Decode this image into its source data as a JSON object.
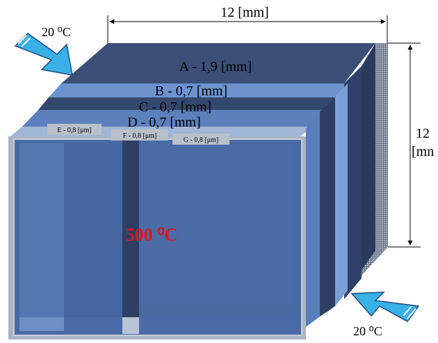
{
  "diagram": {
    "top_dimension": "12 [mm]",
    "side_dimension_value": "12",
    "side_dimension_unit": "[mn",
    "inlet_temperature": "20 ⁰C",
    "outlet_temperature": "20 ⁰C",
    "hot_temperature": "500 ⁰C",
    "layers": {
      "A": "A - 1,9 [mm]",
      "B": "B - 0,7 [mm]",
      "C": "C - 0,7 [mm]",
      "D": "D - 0,7 [mm]",
      "E": "E - 0,8 [μm]",
      "F": "F - 0,8 [μm]",
      "G": "G - 0,8 [μm]"
    },
    "colors": {
      "layer_dark": "#33456a",
      "layer_mid": "#4e6fa3",
      "layer_light": "#7fa6dc",
      "hot_text": "#e0141c",
      "arrow_fill": "#3ab0e8"
    }
  }
}
